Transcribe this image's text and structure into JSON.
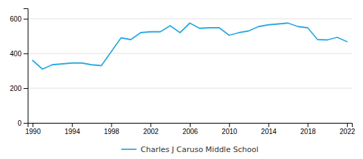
{
  "chart_data": {
    "type": "line",
    "x": [
      1990,
      1991,
      1992,
      1993,
      1994,
      1995,
      1996,
      1997,
      1998,
      1999,
      2000,
      2001,
      2002,
      2003,
      2004,
      2005,
      2006,
      2007,
      2008,
      2009,
      2010,
      2011,
      2012,
      2013,
      2014,
      2015,
      2016,
      2017,
      2018,
      2019,
      2020,
      2021,
      2022
    ],
    "series": [
      {
        "name": "Charles J Caruso Middle School",
        "color": "#29a8e0",
        "values": [
          360,
          310,
          335,
          340,
          345,
          345,
          335,
          330,
          410,
          490,
          480,
          520,
          525,
          525,
          560,
          520,
          575,
          545,
          548,
          548,
          505,
          520,
          530,
          555,
          565,
          570,
          575,
          555,
          548,
          480,
          478,
          493,
          468
        ]
      }
    ],
    "xlim": [
      1989.5,
      2022.5
    ],
    "xticks": [
      1990,
      1994,
      1998,
      2002,
      2006,
      2010,
      2014,
      2018,
      2022
    ],
    "ylim": [
      0,
      660
    ],
    "yticks": [
      0,
      200,
      400,
      600
    ],
    "grid": true,
    "legend": "bottom"
  }
}
